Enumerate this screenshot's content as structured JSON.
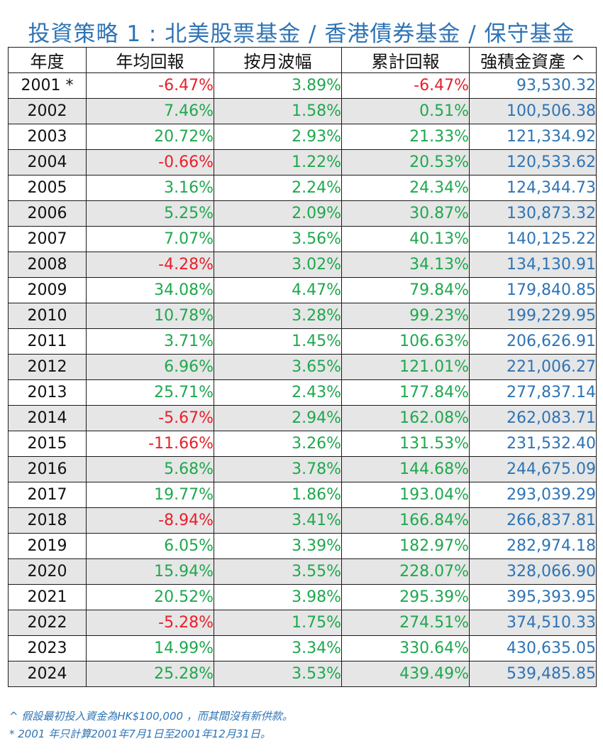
{
  "title": "投資策略 1 : 北美股票基金 / 香港債券基金  /  保守基金",
  "headers": [
    "年度",
    "年均回報",
    "按月波幅",
    "累計回報",
    "強積金資產 ^"
  ],
  "colors": {
    "title": "#2e74b5",
    "positive": "#1fa84d",
    "negative": "#e8202a",
    "amount": "#2e74b5",
    "stripe": "#e6e6e6"
  },
  "rows": [
    {
      "year": "2001 *",
      "annual": "-6.47%",
      "vol": "3.89%",
      "cum": "-6.47%",
      "asset": "93,530.32"
    },
    {
      "year": "2002",
      "annual": "7.46%",
      "vol": "1.58%",
      "cum": "0.51%",
      "asset": "100,506.38"
    },
    {
      "year": "2003",
      "annual": "20.72%",
      "vol": "2.93%",
      "cum": "21.33%",
      "asset": "121,334.92"
    },
    {
      "year": "2004",
      "annual": "-0.66%",
      "vol": "1.22%",
      "cum": "20.53%",
      "asset": "120,533.62"
    },
    {
      "year": "2005",
      "annual": "3.16%",
      "vol": "2.24%",
      "cum": "24.34%",
      "asset": "124,344.73"
    },
    {
      "year": "2006",
      "annual": "5.25%",
      "vol": "2.09%",
      "cum": "30.87%",
      "asset": "130,873.32"
    },
    {
      "year": "2007",
      "annual": "7.07%",
      "vol": "3.56%",
      "cum": "40.13%",
      "asset": "140,125.22"
    },
    {
      "year": "2008",
      "annual": "-4.28%",
      "vol": "3.02%",
      "cum": "34.13%",
      "asset": "134,130.91"
    },
    {
      "year": "2009",
      "annual": "34.08%",
      "vol": "4.47%",
      "cum": "79.84%",
      "asset": "179,840.85"
    },
    {
      "year": "2010",
      "annual": "10.78%",
      "vol": "3.28%",
      "cum": "99.23%",
      "asset": "199,229.95"
    },
    {
      "year": "2011",
      "annual": "3.71%",
      "vol": "1.45%",
      "cum": "106.63%",
      "asset": "206,626.91"
    },
    {
      "year": "2012",
      "annual": "6.96%",
      "vol": "3.65%",
      "cum": "121.01%",
      "asset": "221,006.27"
    },
    {
      "year": "2013",
      "annual": "25.71%",
      "vol": "2.43%",
      "cum": "177.84%",
      "asset": "277,837.14"
    },
    {
      "year": "2014",
      "annual": "-5.67%",
      "vol": "2.94%",
      "cum": "162.08%",
      "asset": "262,083.71"
    },
    {
      "year": "2015",
      "annual": "-11.66%",
      "vol": "3.26%",
      "cum": "131.53%",
      "asset": "231,532.40"
    },
    {
      "year": "2016",
      "annual": "5.68%",
      "vol": "3.78%",
      "cum": "144.68%",
      "asset": "244,675.09"
    },
    {
      "year": "2017",
      "annual": "19.77%",
      "vol": "1.86%",
      "cum": "193.04%",
      "asset": "293,039.29"
    },
    {
      "year": "2018",
      "annual": "-8.94%",
      "vol": "3.41%",
      "cum": "166.84%",
      "asset": "266,837.81"
    },
    {
      "year": "2019",
      "annual": "6.05%",
      "vol": "3.39%",
      "cum": "182.97%",
      "asset": "282,974.18"
    },
    {
      "year": "2020",
      "annual": "15.94%",
      "vol": "3.55%",
      "cum": "228.07%",
      "asset": "328,066.90"
    },
    {
      "year": "2021",
      "annual": "20.52%",
      "vol": "3.98%",
      "cum": "295.39%",
      "asset": "395,393.95"
    },
    {
      "year": "2022",
      "annual": "-5.28%",
      "vol": "1.75%",
      "cum": "274.51%",
      "asset": "374,510.33"
    },
    {
      "year": "2023",
      "annual": "14.99%",
      "vol": "3.34%",
      "cum": "330.64%",
      "asset": "430,635.05"
    },
    {
      "year": "2024",
      "annual": "25.28%",
      "vol": "3.53%",
      "cum": "439.49%",
      "asset": "539,485.85"
    }
  ],
  "notes": [
    "^ 假設最初投入資金為HK$100,000 ，而其間沒有新供款。",
    "* 2001 年只計算2001年7月1日至2001年12月31日。"
  ]
}
